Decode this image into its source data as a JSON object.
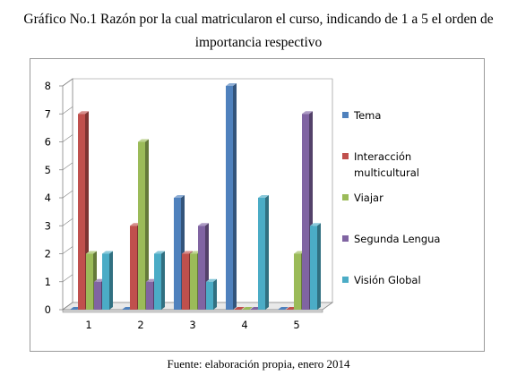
{
  "title_line1": "Gráfico No.1 Razón por la cual matricularon el curso, indicando de 1 a 5 el orden de",
  "title_line2": "importancia respectivo",
  "source": "Fuente: elaboración propia, enero 2014",
  "colors": {
    "Tema": "#4f81bd",
    "Interacción multicultural": "#c0504d",
    "Viajar": "#9bbb59",
    "Segunda Lengua": "#8064a2",
    "Visión Global": "#4bacc6",
    "axis": "#868686",
    "floor": "#e9e9e9"
  },
  "chart_data": {
    "type": "bar",
    "title": "",
    "xlabel": "",
    "ylabel": "",
    "categories": [
      "1",
      "2",
      "3",
      "4",
      "5"
    ],
    "ylim": [
      0,
      8
    ],
    "yticks": [
      "0",
      "1",
      "2",
      "3",
      "4",
      "5",
      "6",
      "7",
      "8"
    ],
    "grid": false,
    "legend_position": "right",
    "style": "3d-clustered-column",
    "series": [
      {
        "name": "Tema",
        "legend_lines": [
          "Tema"
        ],
        "values": [
          0,
          0,
          4,
          8,
          0
        ]
      },
      {
        "name": "Interacción multicultural",
        "legend_lines": [
          "Interacción",
          "multicultural"
        ],
        "values": [
          7,
          3,
          2,
          0,
          0
        ]
      },
      {
        "name": "Viajar",
        "legend_lines": [
          "Viajar"
        ],
        "values": [
          2,
          6,
          2,
          0,
          2
        ]
      },
      {
        "name": "Segunda Lengua",
        "legend_lines": [
          "Segunda Lengua"
        ],
        "values": [
          1,
          1,
          3,
          0,
          7
        ]
      },
      {
        "name": "Visión Global",
        "legend_lines": [
          "Visión Global"
        ],
        "values": [
          2,
          2,
          1,
          4,
          3
        ]
      }
    ]
  }
}
